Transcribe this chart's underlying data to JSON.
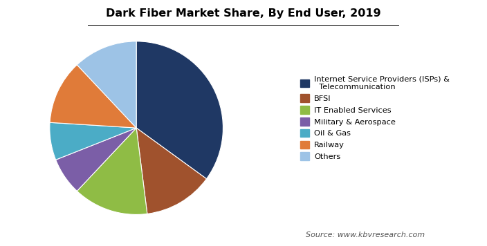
{
  "title": "Dark Fiber Market Share, By End User, 2019",
  "source_text": "Source: www.kbvresearch.com",
  "legend_labels": [
    "Internet Service Providers (ISPs) &\n  Telecommunication",
    "BFSI",
    "IT Enabled Services",
    "Military & Aerospace",
    "Oil & Gas",
    "Railway",
    "Others"
  ],
  "sizes": [
    35,
    13,
    14,
    7,
    7,
    12,
    12
  ],
  "colors": [
    "#1f3864",
    "#a0522d",
    "#8fbc45",
    "#7b5ea7",
    "#4bacc6",
    "#e07b39",
    "#9dc3e6"
  ],
  "startangle": 90,
  "background_color": "#ffffff",
  "title_fontsize": 11.5,
  "source_fontsize": 8
}
